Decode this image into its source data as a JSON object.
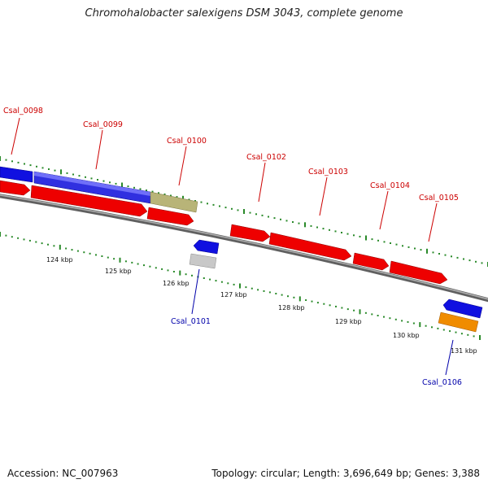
{
  "title": "Chromohalobacter salexigens DSM 3043, complete genome",
  "footer": {
    "accession": "Accession: NC_007963",
    "stats": "Topology: circular; Length: 3,696,649 bp; Genes: 3,388"
  },
  "colors": {
    "forward_gene": "#ee0000",
    "reverse_gene": "#1010e0",
    "rna_gene": "#b8b478",
    "pseudo_gene": "#c8c8c8",
    "other_gene": "#f08c00",
    "backbone": "#808080",
    "tick": "#2a8a2a",
    "label_red": "#cc0000",
    "label_blue": "#0000aa"
  },
  "scale_labels": [
    "124 kbp",
    "125 kbp",
    "126 kbp",
    "127 kbp",
    "128 kbp",
    "129 kbp",
    "130 kbp",
    "131 kbp"
  ],
  "genes": [
    {
      "name": "Csal_0098",
      "label_color": "#cc0000"
    },
    {
      "name": "Csal_0099",
      "label_color": "#cc0000"
    },
    {
      "name": "Csal_0100",
      "label_color": "#cc0000"
    },
    {
      "name": "Csal_0101",
      "label_color": "#0000aa"
    },
    {
      "name": "Csal_0102",
      "label_color": "#cc0000"
    },
    {
      "name": "Csal_0103",
      "label_color": "#cc0000"
    },
    {
      "name": "Csal_0104",
      "label_color": "#cc0000"
    },
    {
      "name": "Csal_0105",
      "label_color": "#cc0000"
    },
    {
      "name": "Csal_0106",
      "label_color": "#0000aa"
    }
  ]
}
